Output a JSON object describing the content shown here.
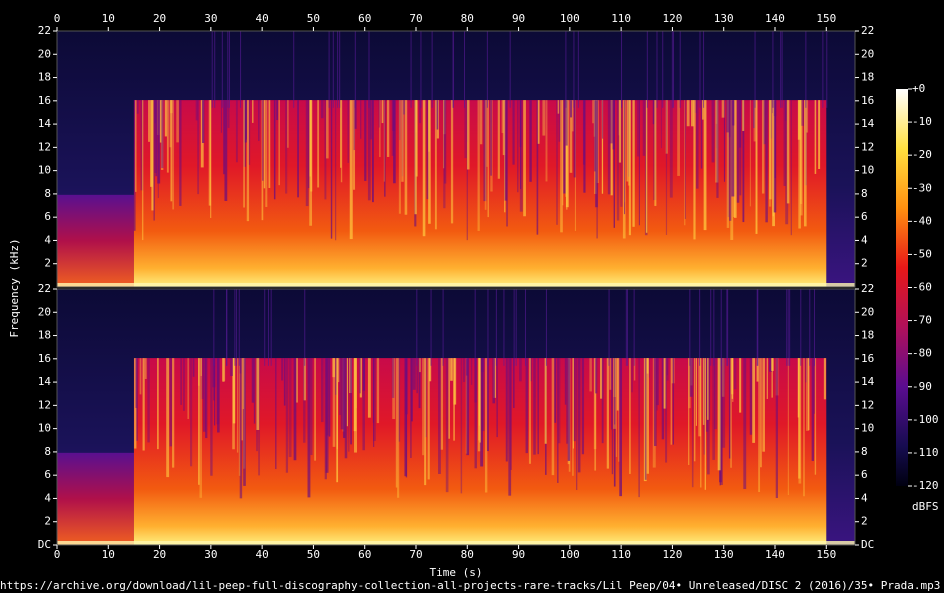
{
  "ylabel": "Frequency (kHz)",
  "xlabel": "Time (s)",
  "colorbar": {
    "label": "dBFS",
    "lim": [
      -120,
      0
    ],
    "ticks": [
      {
        "value": 0,
        "label": "+0"
      },
      -10,
      -20,
      -30,
      -40,
      -50,
      -60,
      -70,
      -80,
      -90,
      -100,
      -110,
      -120
    ]
  },
  "source": "https://archive.org/download/lil-peep-full-discography-collection-all-projects-rare-tracks/Lil Peep/04• Unreleased/DISC 2 (2016)/35• Prada.mp3",
  "chart_data": [
    {
      "type": "spectrogram",
      "xlim": [
        0,
        155.6
      ],
      "xticks": [
        0,
        10,
        20,
        30,
        40,
        50,
        60,
        70,
        80,
        90,
        100,
        110,
        120,
        130,
        140,
        150
      ],
      "ylim": [
        0,
        22
      ],
      "yticks": [
        2,
        4,
        6,
        8,
        10,
        12,
        14,
        16,
        18,
        20,
        22
      ]
    },
    {
      "type": "spectrogram",
      "xlim": [
        0,
        155.6
      ],
      "xticks": [
        0,
        10,
        20,
        30,
        40,
        50,
        60,
        70,
        80,
        90,
        100,
        110,
        120,
        130,
        140,
        150
      ],
      "ylim": [
        0,
        22
      ],
      "yticks": [
        {
          "value": 0,
          "label": "DC"
        },
        2,
        4,
        6,
        8,
        10,
        12,
        14,
        16,
        18,
        20,
        22
      ]
    }
  ]
}
